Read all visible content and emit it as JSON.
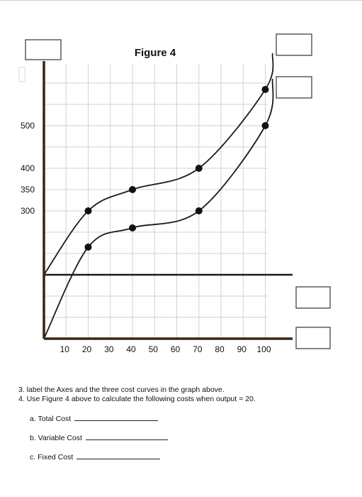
{
  "chart_data": {
    "type": "line",
    "title": "Figure 4",
    "xlabel": "",
    "ylabel": "",
    "x_ticks": [
      10,
      20,
      30,
      40,
      50,
      60,
      70,
      80,
      90,
      100
    ],
    "y_ticks": [
      300,
      350,
      400,
      500
    ],
    "grid": true,
    "series": [
      {
        "kind": "upper-curve",
        "points": [
          [
            0,
            150
          ],
          [
            20,
            300
          ],
          [
            40,
            350
          ],
          [
            70,
            400
          ],
          [
            100,
            585
          ]
        ]
      },
      {
        "kind": "lower-curve",
        "points": [
          [
            0,
            0
          ],
          [
            20,
            215
          ],
          [
            40,
            260
          ],
          [
            70,
            300
          ],
          [
            100,
            500
          ]
        ]
      },
      {
        "kind": "horizontal-line",
        "y": 150
      }
    ],
    "markers": {
      "upper-curve": [
        [
          20,
          300
        ],
        [
          40,
          350
        ],
        [
          70,
          400
        ],
        [
          100,
          585
        ]
      ],
      "lower-curve": [
        [
          20,
          215
        ],
        [
          40,
          260
        ],
        [
          70,
          300
        ],
        [
          100,
          500
        ]
      ]
    }
  },
  "questions": {
    "q3": "3.  label the Axes and the three cost curves in the graph above.",
    "q4": "4.  Use Figure 4 above to calculate the following costs when output = 20.",
    "a": "a.  Total Cost",
    "b": "b.  Variable Cost",
    "c": "c.  Fixed Cost"
  }
}
